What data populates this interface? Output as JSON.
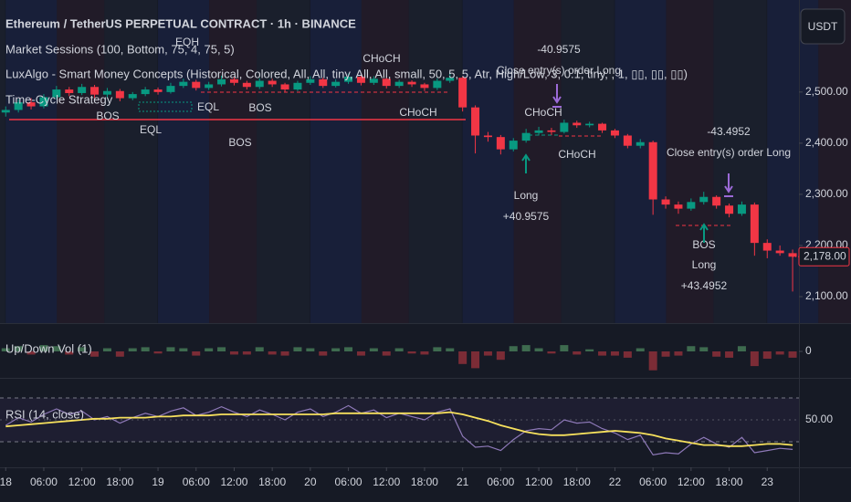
{
  "header": {
    "title": "Ethereum / TetherUS PERPETUAL CONTRACT · 1h · BINANCE",
    "indicators": [
      "Market Sessions (100, Bottom, 75, 4, 75, 5)",
      "LuxAlgo - Smart Money Concepts (Historical, Colored, All, All, tiny, All, All, small, 50, 5, 5, Atr, High/Low, 3, 0.1, tiny, , 1, ▯▯, ▯▯, ▯▯)",
      "Time-Cycle Strategy"
    ],
    "currency_button": "USDT"
  },
  "chart_data": [
    {
      "type": "candlestick",
      "x": [
        0,
        2,
        4,
        6,
        8,
        10,
        12,
        14,
        16,
        18,
        20,
        22,
        24,
        26,
        28,
        30,
        32,
        34,
        36,
        38,
        40,
        42,
        44,
        46,
        48,
        50,
        52,
        54,
        56,
        58,
        60,
        62,
        64,
        66,
        68,
        70,
        72,
        74,
        76,
        78,
        80,
        82,
        84,
        86,
        88,
        90,
        92,
        94,
        96,
        98,
        100,
        102,
        104,
        106,
        108,
        110,
        112,
        114,
        116,
        118,
        120,
        122,
        124
      ],
      "open": [
        2460,
        2465,
        2480,
        2472,
        2490,
        2505,
        2498,
        2510,
        2495,
        2502,
        2488,
        2496,
        2505,
        2500,
        2512,
        2520,
        2508,
        2515,
        2525,
        2518,
        2510,
        2522,
        2515,
        2505,
        2518,
        2525,
        2512,
        2520,
        2530,
        2518,
        2526,
        2512,
        2520,
        2515,
        2508,
        2522,
        2528,
        2470,
        2415,
        2412,
        2388,
        2405,
        2420,
        2425,
        2422,
        2440,
        2435,
        2438,
        2425,
        2415,
        2395,
        2402,
        2290,
        2280,
        2272,
        2285,
        2295,
        2278,
        2262,
        2280,
        2205,
        2190,
        2185
      ],
      "high": [
        2472,
        2486,
        2488,
        2496,
        2512,
        2510,
        2516,
        2514,
        2508,
        2506,
        2500,
        2510,
        2509,
        2518,
        2526,
        2524,
        2520,
        2532,
        2529,
        2522,
        2527,
        2526,
        2518,
        2522,
        2531,
        2528,
        2525,
        2536,
        2533,
        2531,
        2529,
        2524,
        2523,
        2518,
        2527,
        2538,
        2531,
        2474,
        2422,
        2416,
        2410,
        2428,
        2432,
        2430,
        2446,
        2444,
        2442,
        2440,
        2428,
        2418,
        2408,
        2405,
        2296,
        2286,
        2292,
        2305,
        2298,
        2282,
        2286,
        2284,
        2212,
        2200,
        2192
      ],
      "low": [
        2452,
        2460,
        2466,
        2468,
        2486,
        2492,
        2494,
        2488,
        2490,
        2482,
        2484,
        2492,
        2495,
        2497,
        2508,
        2503,
        2504,
        2511,
        2513,
        2505,
        2506,
        2510,
        2500,
        2502,
        2514,
        2508,
        2509,
        2516,
        2513,
        2514,
        2507,
        2508,
        2510,
        2502,
        2504,
        2518,
        2462,
        2380,
        2403,
        2378,
        2384,
        2401,
        2415,
        2416,
        2419,
        2430,
        2431,
        2420,
        2410,
        2390,
        2390,
        2260,
        2272,
        2262,
        2268,
        2280,
        2272,
        2255,
        2258,
        2180,
        2175,
        2180,
        2110
      ],
      "close": [
        2465,
        2480,
        2472,
        2490,
        2505,
        2498,
        2510,
        2495,
        2502,
        2488,
        2496,
        2505,
        2500,
        2512,
        2520,
        2508,
        2515,
        2525,
        2518,
        2510,
        2522,
        2515,
        2505,
        2518,
        2525,
        2512,
        2520,
        2530,
        2518,
        2526,
        2512,
        2520,
        2515,
        2508,
        2522,
        2528,
        2470,
        2415,
        2412,
        2388,
        2405,
        2420,
        2425,
        2422,
        2440,
        2435,
        2438,
        2425,
        2415,
        2395,
        2402,
        2290,
        2280,
        2272,
        2285,
        2295,
        2278,
        2262,
        2280,
        2205,
        2190,
        2185,
        2178
      ],
      "up_color": "#089981",
      "down_color": "#f23645",
      "ylim": [
        2050,
        2680
      ],
      "yticks": [
        {
          "value": 2100,
          "label": "2,100.00"
        },
        {
          "value": 2200,
          "label": "2,200.00"
        },
        {
          "value": 2300,
          "label": "2,300.00"
        },
        {
          "value": 2400,
          "label": "2,400.00"
        },
        {
          "value": 2500,
          "label": "2,500.00"
        }
      ],
      "last_price_label": "2,178.00",
      "xlim": [
        -0.9,
        125
      ],
      "xticks": [
        {
          "value": 0,
          "label": "18"
        },
        {
          "value": 6,
          "label": "06:00"
        },
        {
          "value": 12,
          "label": "12:00"
        },
        {
          "value": 18,
          "label": "18:00"
        },
        {
          "value": 24,
          "label": "19"
        },
        {
          "value": 30,
          "label": "06:00"
        },
        {
          "value": 36,
          "label": "12:00"
        },
        {
          "value": 42,
          "label": "18:00"
        },
        {
          "value": 48,
          "label": "20"
        },
        {
          "value": 54,
          "label": "06:00"
        },
        {
          "value": 60,
          "label": "12:00"
        },
        {
          "value": 66,
          "label": "18:00"
        },
        {
          "value": 72,
          "label": "21"
        },
        {
          "value": 78,
          "label": "06:00"
        },
        {
          "value": 84,
          "label": "12:00"
        },
        {
          "value": 90,
          "label": "18:00"
        },
        {
          "value": 96,
          "label": "22"
        },
        {
          "value": 102,
          "label": "06:00"
        },
        {
          "value": 108,
          "label": "12:00"
        },
        {
          "value": 114,
          "label": "18:00"
        },
        {
          "value": 120,
          "label": "23"
        }
      ],
      "smc_labels": [
        "CHoCH",
        "EQH",
        "BOS",
        "EQL",
        "EQL",
        "BOS",
        "CHoCH",
        "BOS",
        "CHoCH",
        "CHoCH",
        "BOS"
      ],
      "trades": [
        {
          "exit_result": "-40.9575",
          "exit_text": "Close entry(s) order Long",
          "entry_text": "Long",
          "entry_result": "+40.9575"
        },
        {
          "exit_result": "-43.4952",
          "exit_text": "Close entry(s) order Long",
          "entry_text": "Long",
          "entry_result": "+43.4952"
        }
      ]
    },
    {
      "type": "bar",
      "title": "Up/Down Vol (1)",
      "values": [
        3,
        5,
        -3,
        6,
        5,
        -3,
        4,
        -5,
        3,
        -5,
        3,
        4,
        -2,
        4,
        3,
        -4,
        3,
        4,
        -3,
        -3,
        4,
        -3,
        -4,
        4,
        3,
        -4,
        3,
        4,
        -4,
        3,
        -4,
        3,
        -2,
        -3,
        4,
        3,
        -12,
        -16,
        -4,
        -8,
        5,
        6,
        3,
        -2,
        6,
        -3,
        2,
        -4,
        -4,
        -6,
        3,
        -18,
        -5,
        -4,
        5,
        4,
        -5,
        -6,
        5,
        -14,
        -7,
        -3,
        -6
      ],
      "up_color": "#3e6b4f",
      "down_color": "#7b2c36",
      "ylim": [
        -20,
        20
      ],
      "yticks": [
        0
      ]
    },
    {
      "type": "line",
      "title": "RSI (14, close)",
      "series": [
        {
          "color": "#8e79b8",
          "values": [
            45,
            52,
            48,
            55,
            60,
            55,
            58,
            50,
            53,
            47,
            52,
            56,
            53,
            58,
            61,
            54,
            57,
            62,
            57,
            53,
            59,
            55,
            50,
            57,
            60,
            53,
            57,
            63,
            56,
            59,
            52,
            56,
            53,
            50,
            57,
            60,
            35,
            25,
            26,
            22,
            32,
            40,
            42,
            41,
            50,
            47,
            48,
            42,
            38,
            32,
            36,
            18,
            20,
            19,
            28,
            34,
            28,
            25,
            34,
            20,
            22,
            24,
            23
          ]
        },
        {
          "color": "#f7e15d",
          "values": [
            44,
            45,
            46,
            47,
            48,
            49,
            50,
            51,
            51,
            52,
            52,
            52,
            53,
            53,
            54,
            54,
            54,
            55,
            55,
            55,
            55,
            55,
            55,
            55,
            55,
            55,
            56,
            56,
            56,
            56,
            56,
            56,
            56,
            56,
            56,
            57,
            55,
            52,
            49,
            45,
            42,
            39,
            37,
            36,
            36,
            37,
            38,
            39,
            40,
            39,
            38,
            36,
            33,
            31,
            29,
            27,
            27,
            26,
            26,
            27,
            28,
            28,
            27
          ]
        }
      ],
      "ylim": [
        10,
        80
      ],
      "yticks": [
        {
          "value": 50,
          "label": "50.00"
        }
      ],
      "hlines": [
        70,
        30
      ]
    }
  ]
}
